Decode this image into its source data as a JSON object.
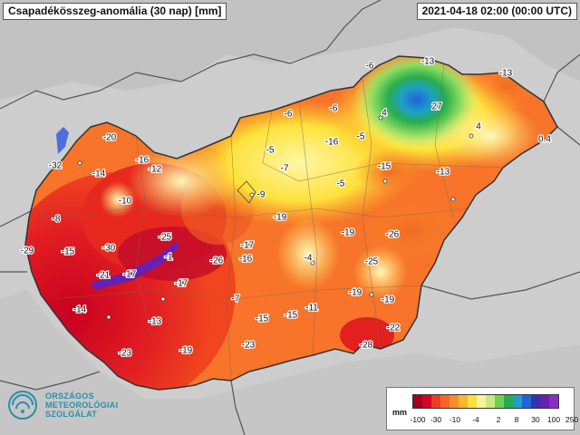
{
  "header": {
    "title": "Csapadékösszeg-anomália (30 nap) [mm]",
    "timestamp": "2021-04-18 02:00 (00:00 UTC)"
  },
  "logo": {
    "line1": "ORSZÁGOS",
    "line2": "METEOROLÓGIAI",
    "line3": "SZOLGÁLAT"
  },
  "legend": {
    "unit": "mm",
    "ticks": [
      "-100",
      "-30",
      "-10",
      "-4",
      "2",
      "8",
      "30",
      "100",
      "250"
    ],
    "colors": [
      "#9e0020",
      "#d7002a",
      "#f03b20",
      "#f7642a",
      "#fb8c2c",
      "#fdb62d",
      "#fee03a",
      "#f6f39c",
      "#c6ec7c",
      "#6fd24f",
      "#27ad4e",
      "#1f9fc8",
      "#1f64d8",
      "#3432b4",
      "#6a1fb0",
      "#8d2bc9"
    ]
  },
  "values": [
    "-6",
    "-13",
    "-13",
    "27",
    "4",
    "4",
    "0.4",
    "-6",
    "-6",
    "-16",
    "-5",
    "-20",
    "-32",
    "-16",
    "-12",
    "-14",
    "-5",
    "-7",
    "-15",
    "-13",
    "-9",
    "-5",
    "-10",
    "-19",
    "-8",
    "-19",
    "-26",
    "-25",
    "-29",
    "-15",
    "-30",
    "-17",
    "-1",
    "-4",
    "-25",
    "-21",
    "-17",
    "-16",
    "-26",
    "-17",
    "-14",
    "-7",
    "-19",
    "-19",
    "-13",
    "-15",
    "-15",
    "-11",
    "-22",
    "-23",
    "-28",
    "-23",
    "-19"
  ]
}
